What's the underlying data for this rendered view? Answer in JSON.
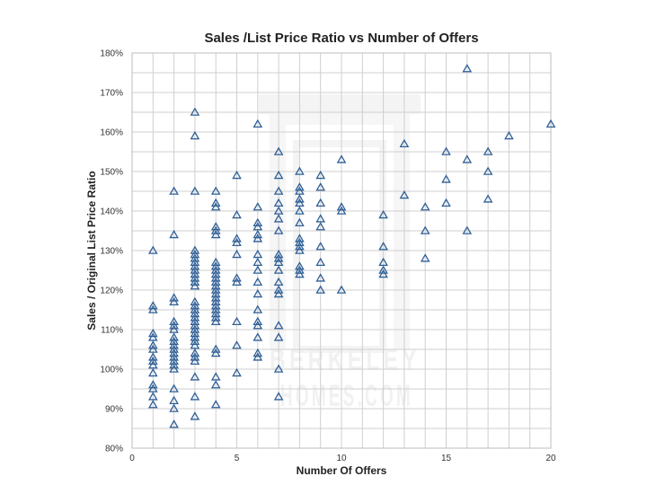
{
  "chart_data": {
    "type": "scatter",
    "title": "Sales /List Price Ratio vs Number of Offers",
    "xlabel": "Number Of Offers",
    "ylabel": "Sales / Original List Price Ratio",
    "xlim": [
      0,
      20
    ],
    "ylim": [
      80,
      180
    ],
    "xticks": [
      0,
      5,
      10,
      15,
      20
    ],
    "yticks": [
      80,
      90,
      100,
      110,
      120,
      130,
      140,
      150,
      160,
      170,
      180
    ],
    "y_unit": "%",
    "grid": true,
    "marker": "triangle",
    "marker_color": "#2f5f96",
    "watermark": "BERKELEY HOMES.COM",
    "points": [
      {
        "x": 1,
        "y": 130
      },
      {
        "x": 1,
        "y": 116
      },
      {
        "x": 1,
        "y": 115
      },
      {
        "x": 1,
        "y": 109
      },
      {
        "x": 1,
        "y": 108
      },
      {
        "x": 1,
        "y": 106
      },
      {
        "x": 1,
        "y": 105
      },
      {
        "x": 1,
        "y": 103
      },
      {
        "x": 1,
        "y": 102
      },
      {
        "x": 1,
        "y": 101
      },
      {
        "x": 1,
        "y": 99
      },
      {
        "x": 1,
        "y": 96
      },
      {
        "x": 1,
        "y": 95
      },
      {
        "x": 1,
        "y": 93
      },
      {
        "x": 1,
        "y": 91
      },
      {
        "x": 2,
        "y": 145
      },
      {
        "x": 2,
        "y": 134
      },
      {
        "x": 2,
        "y": 118
      },
      {
        "x": 2,
        "y": 117
      },
      {
        "x": 2,
        "y": 112
      },
      {
        "x": 2,
        "y": 111
      },
      {
        "x": 2,
        "y": 110
      },
      {
        "x": 2,
        "y": 108
      },
      {
        "x": 2,
        "y": 107
      },
      {
        "x": 2,
        "y": 106
      },
      {
        "x": 2,
        "y": 105
      },
      {
        "x": 2,
        "y": 104
      },
      {
        "x": 2,
        "y": 103
      },
      {
        "x": 2,
        "y": 102
      },
      {
        "x": 2,
        "y": 101
      },
      {
        "x": 2,
        "y": 100
      },
      {
        "x": 2,
        "y": 95
      },
      {
        "x": 2,
        "y": 92
      },
      {
        "x": 2,
        "y": 90
      },
      {
        "x": 2,
        "y": 86
      },
      {
        "x": 3,
        "y": 165
      },
      {
        "x": 3,
        "y": 159
      },
      {
        "x": 3,
        "y": 145
      },
      {
        "x": 3,
        "y": 130
      },
      {
        "x": 3,
        "y": 129
      },
      {
        "x": 3,
        "y": 128
      },
      {
        "x": 3,
        "y": 127
      },
      {
        "x": 3,
        "y": 126
      },
      {
        "x": 3,
        "y": 125
      },
      {
        "x": 3,
        "y": 124
      },
      {
        "x": 3,
        "y": 123
      },
      {
        "x": 3,
        "y": 122
      },
      {
        "x": 3,
        "y": 121
      },
      {
        "x": 3,
        "y": 117
      },
      {
        "x": 3,
        "y": 116
      },
      {
        "x": 3,
        "y": 115
      },
      {
        "x": 3,
        "y": 114
      },
      {
        "x": 3,
        "y": 113
      },
      {
        "x": 3,
        "y": 112
      },
      {
        "x": 3,
        "y": 111
      },
      {
        "x": 3,
        "y": 110
      },
      {
        "x": 3,
        "y": 109
      },
      {
        "x": 3,
        "y": 108
      },
      {
        "x": 3,
        "y": 107
      },
      {
        "x": 3,
        "y": 106
      },
      {
        "x": 3,
        "y": 104
      },
      {
        "x": 3,
        "y": 103
      },
      {
        "x": 3,
        "y": 102
      },
      {
        "x": 3,
        "y": 98
      },
      {
        "x": 3,
        "y": 93
      },
      {
        "x": 3,
        "y": 88
      },
      {
        "x": 4,
        "y": 145
      },
      {
        "x": 4,
        "y": 142
      },
      {
        "x": 4,
        "y": 141
      },
      {
        "x": 4,
        "y": 136
      },
      {
        "x": 4,
        "y": 135
      },
      {
        "x": 4,
        "y": 134
      },
      {
        "x": 4,
        "y": 127
      },
      {
        "x": 4,
        "y": 126
      },
      {
        "x": 4,
        "y": 125
      },
      {
        "x": 4,
        "y": 124
      },
      {
        "x": 4,
        "y": 123
      },
      {
        "x": 4,
        "y": 122
      },
      {
        "x": 4,
        "y": 121
      },
      {
        "x": 4,
        "y": 120
      },
      {
        "x": 4,
        "y": 119
      },
      {
        "x": 4,
        "y": 118
      },
      {
        "x": 4,
        "y": 117
      },
      {
        "x": 4,
        "y": 116
      },
      {
        "x": 4,
        "y": 115
      },
      {
        "x": 4,
        "y": 114
      },
      {
        "x": 4,
        "y": 113
      },
      {
        "x": 4,
        "y": 112
      },
      {
        "x": 4,
        "y": 105
      },
      {
        "x": 4,
        "y": 104
      },
      {
        "x": 4,
        "y": 98
      },
      {
        "x": 4,
        "y": 96
      },
      {
        "x": 4,
        "y": 91
      },
      {
        "x": 5,
        "y": 149
      },
      {
        "x": 5,
        "y": 139
      },
      {
        "x": 5,
        "y": 133
      },
      {
        "x": 5,
        "y": 132
      },
      {
        "x": 5,
        "y": 129
      },
      {
        "x": 5,
        "y": 123
      },
      {
        "x": 5,
        "y": 122
      },
      {
        "x": 5,
        "y": 112
      },
      {
        "x": 5,
        "y": 106
      },
      {
        "x": 5,
        "y": 99
      },
      {
        "x": 6,
        "y": 162
      },
      {
        "x": 6,
        "y": 141
      },
      {
        "x": 6,
        "y": 137
      },
      {
        "x": 6,
        "y": 136
      },
      {
        "x": 6,
        "y": 134
      },
      {
        "x": 6,
        "y": 133
      },
      {
        "x": 6,
        "y": 129
      },
      {
        "x": 6,
        "y": 127
      },
      {
        "x": 6,
        "y": 125
      },
      {
        "x": 6,
        "y": 122
      },
      {
        "x": 6,
        "y": 119
      },
      {
        "x": 6,
        "y": 115
      },
      {
        "x": 6,
        "y": 112
      },
      {
        "x": 6,
        "y": 111
      },
      {
        "x": 6,
        "y": 108
      },
      {
        "x": 6,
        "y": 104
      },
      {
        "x": 6,
        "y": 103
      },
      {
        "x": 7,
        "y": 155
      },
      {
        "x": 7,
        "y": 149
      },
      {
        "x": 7,
        "y": 145
      },
      {
        "x": 7,
        "y": 142
      },
      {
        "x": 7,
        "y": 140
      },
      {
        "x": 7,
        "y": 138
      },
      {
        "x": 7,
        "y": 135
      },
      {
        "x": 7,
        "y": 129
      },
      {
        "x": 7,
        "y": 128
      },
      {
        "x": 7,
        "y": 127
      },
      {
        "x": 7,
        "y": 125
      },
      {
        "x": 7,
        "y": 122
      },
      {
        "x": 7,
        "y": 120
      },
      {
        "x": 7,
        "y": 119
      },
      {
        "x": 7,
        "y": 111
      },
      {
        "x": 7,
        "y": 108
      },
      {
        "x": 7,
        "y": 100
      },
      {
        "x": 7,
        "y": 93
      },
      {
        "x": 8,
        "y": 150
      },
      {
        "x": 8,
        "y": 146
      },
      {
        "x": 8,
        "y": 145
      },
      {
        "x": 8,
        "y": 143
      },
      {
        "x": 8,
        "y": 142
      },
      {
        "x": 8,
        "y": 140
      },
      {
        "x": 8,
        "y": 137
      },
      {
        "x": 8,
        "y": 133
      },
      {
        "x": 8,
        "y": 132
      },
      {
        "x": 8,
        "y": 131
      },
      {
        "x": 8,
        "y": 130
      },
      {
        "x": 8,
        "y": 126
      },
      {
        "x": 8,
        "y": 125
      },
      {
        "x": 8,
        "y": 124
      },
      {
        "x": 9,
        "y": 149
      },
      {
        "x": 9,
        "y": 146
      },
      {
        "x": 9,
        "y": 142
      },
      {
        "x": 9,
        "y": 138
      },
      {
        "x": 9,
        "y": 136
      },
      {
        "x": 9,
        "y": 131
      },
      {
        "x": 9,
        "y": 127
      },
      {
        "x": 9,
        "y": 123
      },
      {
        "x": 9,
        "y": 120
      },
      {
        "x": 10,
        "y": 153
      },
      {
        "x": 10,
        "y": 141
      },
      {
        "x": 10,
        "y": 140
      },
      {
        "x": 10,
        "y": 120
      },
      {
        "x": 12,
        "y": 139
      },
      {
        "x": 12,
        "y": 131
      },
      {
        "x": 12,
        "y": 127
      },
      {
        "x": 12,
        "y": 125
      },
      {
        "x": 12,
        "y": 124
      },
      {
        "x": 13,
        "y": 157
      },
      {
        "x": 13,
        "y": 144
      },
      {
        "x": 14,
        "y": 141
      },
      {
        "x": 14,
        "y": 135
      },
      {
        "x": 14,
        "y": 128
      },
      {
        "x": 15,
        "y": 155
      },
      {
        "x": 15,
        "y": 148
      },
      {
        "x": 15,
        "y": 142
      },
      {
        "x": 16,
        "y": 176
      },
      {
        "x": 16,
        "y": 153
      },
      {
        "x": 16,
        "y": 135
      },
      {
        "x": 17,
        "y": 155
      },
      {
        "x": 17,
        "y": 150
      },
      {
        "x": 17,
        "y": 143
      },
      {
        "x": 18,
        "y": 159
      },
      {
        "x": 20,
        "y": 162
      }
    ]
  }
}
